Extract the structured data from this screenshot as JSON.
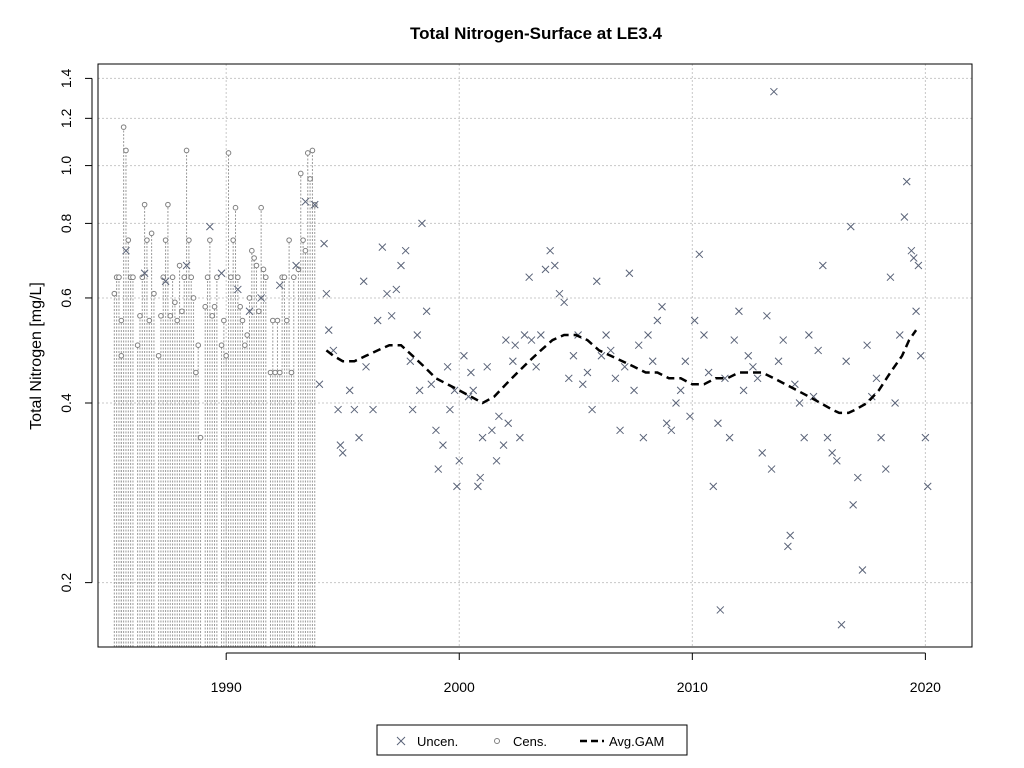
{
  "chart_data": {
    "type": "scatter",
    "title": "Total Nitrogen-Surface at LE3.4",
    "xlabel": "",
    "ylabel": "Total Nitrogen [mg/L]",
    "y_scale": "log",
    "xlim": [
      1984.5,
      2022
    ],
    "ylim": [
      0.156,
      1.48
    ],
    "x_ticks": [
      1990,
      2000,
      2010,
      2020
    ],
    "y_ticks": [
      0.2,
      0.4,
      0.6,
      0.8,
      1.0,
      1.2,
      1.4
    ],
    "y_tick_labels": [
      "0.2",
      "0.4",
      "0.6",
      "0.8",
      "1.0",
      "1.2",
      "1.4"
    ],
    "grid": true,
    "legend_position": "bottom",
    "colors": {
      "uncensored": "#5a6378",
      "censored": "#7f7f7f",
      "gam": "#000000",
      "grid": "#c8c8c8"
    },
    "legend": [
      {
        "label": "Uncen.",
        "marker": "x"
      },
      {
        "label": "Cens.",
        "marker": "circle"
      },
      {
        "label": "Avg.GAM",
        "marker": "dashed-line"
      }
    ],
    "series": [
      {
        "name": "Uncen.",
        "points": [
          [
            1985.7,
            0.72
          ],
          [
            1986.5,
            0.66
          ],
          [
            1987.4,
            0.64
          ],
          [
            1988.3,
            0.68
          ],
          [
            1989.3,
            0.79
          ],
          [
            1989.8,
            0.66
          ],
          [
            1990.5,
            0.62
          ],
          [
            1991.0,
            0.57
          ],
          [
            1991.5,
            0.6
          ],
          [
            1992.3,
            0.63
          ],
          [
            1993.0,
            0.68
          ],
          [
            1993.4,
            0.87
          ],
          [
            1993.8,
            0.86
          ],
          [
            1994.0,
            0.43
          ],
          [
            1994.2,
            0.74
          ],
          [
            1994.3,
            0.61
          ],
          [
            1994.4,
            0.53
          ],
          [
            1994.6,
            0.49
          ],
          [
            1994.8,
            0.39
          ],
          [
            1994.9,
            0.34
          ],
          [
            1995.0,
            0.33
          ],
          [
            1995.3,
            0.42
          ],
          [
            1995.5,
            0.39
          ],
          [
            1995.7,
            0.35
          ],
          [
            1995.9,
            0.64
          ],
          [
            1996.0,
            0.46
          ],
          [
            1996.3,
            0.39
          ],
          [
            1996.5,
            0.55
          ],
          [
            1996.7,
            0.73
          ],
          [
            1996.9,
            0.61
          ],
          [
            1997.1,
            0.56
          ],
          [
            1997.3,
            0.62
          ],
          [
            1997.5,
            0.68
          ],
          [
            1997.7,
            0.72
          ],
          [
            1997.9,
            0.47
          ],
          [
            1998.0,
            0.39
          ],
          [
            1998.2,
            0.52
          ],
          [
            1998.3,
            0.42
          ],
          [
            1998.4,
            0.8
          ],
          [
            1998.6,
            0.57
          ],
          [
            1998.8,
            0.43
          ],
          [
            1999.0,
            0.36
          ],
          [
            1999.1,
            0.31
          ],
          [
            1999.3,
            0.34
          ],
          [
            1999.5,
            0.46
          ],
          [
            1999.6,
            0.39
          ],
          [
            1999.8,
            0.42
          ],
          [
            1999.9,
            0.29
          ],
          [
            2000.0,
            0.32
          ],
          [
            2000.2,
            0.48
          ],
          [
            2000.4,
            0.41
          ],
          [
            2000.5,
            0.45
          ],
          [
            2000.6,
            0.42
          ],
          [
            2000.8,
            0.29
          ],
          [
            2000.9,
            0.3
          ],
          [
            2001.0,
            0.35
          ],
          [
            2001.2,
            0.46
          ],
          [
            2001.4,
            0.36
          ],
          [
            2001.6,
            0.32
          ],
          [
            2001.7,
            0.38
          ],
          [
            2001.9,
            0.34
          ],
          [
            2002.0,
            0.51
          ],
          [
            2002.1,
            0.37
          ],
          [
            2002.3,
            0.47
          ],
          [
            2002.4,
            0.5
          ],
          [
            2002.6,
            0.35
          ],
          [
            2002.8,
            0.52
          ],
          [
            2003.0,
            0.65
          ],
          [
            2003.1,
            0.51
          ],
          [
            2003.3,
            0.46
          ],
          [
            2003.5,
            0.52
          ],
          [
            2003.7,
            0.67
          ],
          [
            2003.9,
            0.72
          ],
          [
            2004.1,
            0.68
          ],
          [
            2004.3,
            0.61
          ],
          [
            2004.5,
            0.59
          ],
          [
            2004.7,
            0.44
          ],
          [
            2004.9,
            0.48
          ],
          [
            2005.1,
            0.52
          ],
          [
            2005.3,
            0.43
          ],
          [
            2005.5,
            0.45
          ],
          [
            2005.7,
            0.39
          ],
          [
            2005.9,
            0.64
          ],
          [
            2006.1,
            0.48
          ],
          [
            2006.3,
            0.52
          ],
          [
            2006.5,
            0.49
          ],
          [
            2006.7,
            0.44
          ],
          [
            2006.9,
            0.36
          ],
          [
            2007.1,
            0.46
          ],
          [
            2007.3,
            0.66
          ],
          [
            2007.5,
            0.42
          ],
          [
            2007.7,
            0.5
          ],
          [
            2007.9,
            0.35
          ],
          [
            2008.1,
            0.52
          ],
          [
            2008.3,
            0.47
          ],
          [
            2008.5,
            0.55
          ],
          [
            2008.7,
            0.58
          ],
          [
            2008.9,
            0.37
          ],
          [
            2009.1,
            0.36
          ],
          [
            2009.3,
            0.4
          ],
          [
            2009.5,
            0.42
          ],
          [
            2009.7,
            0.47
          ],
          [
            2009.9,
            0.38
          ],
          [
            2010.1,
            0.55
          ],
          [
            2010.3,
            0.71
          ],
          [
            2010.5,
            0.52
          ],
          [
            2010.7,
            0.45
          ],
          [
            2010.9,
            0.29
          ],
          [
            2011.1,
            0.37
          ],
          [
            2011.2,
            0.18
          ],
          [
            2011.4,
            0.44
          ],
          [
            2011.6,
            0.35
          ],
          [
            2011.8,
            0.51
          ],
          [
            2012.0,
            0.57
          ],
          [
            2012.2,
            0.42
          ],
          [
            2012.4,
            0.48
          ],
          [
            2012.6,
            0.46
          ],
          [
            2012.8,
            0.44
          ],
          [
            2013.0,
            0.33
          ],
          [
            2013.2,
            0.56
          ],
          [
            2013.4,
            0.31
          ],
          [
            2013.5,
            1.33
          ],
          [
            2013.7,
            0.47
          ],
          [
            2013.9,
            0.51
          ],
          [
            2014.1,
            0.23
          ],
          [
            2014.2,
            0.24
          ],
          [
            2014.4,
            0.43
          ],
          [
            2014.6,
            0.4
          ],
          [
            2014.8,
            0.35
          ],
          [
            2015.0,
            0.52
          ],
          [
            2015.2,
            0.41
          ],
          [
            2015.4,
            0.49
          ],
          [
            2015.6,
            0.68
          ],
          [
            2015.8,
            0.35
          ],
          [
            2016.0,
            0.33
          ],
          [
            2016.2,
            0.32
          ],
          [
            2016.4,
            0.17
          ],
          [
            2016.6,
            0.47
          ],
          [
            2016.8,
            0.79
          ],
          [
            2016.9,
            0.27
          ],
          [
            2017.1,
            0.3
          ],
          [
            2017.3,
            0.21
          ],
          [
            2017.5,
            0.5
          ],
          [
            2017.7,
            0.41
          ],
          [
            2017.9,
            0.44
          ],
          [
            2018.1,
            0.35
          ],
          [
            2018.3,
            0.31
          ],
          [
            2018.5,
            0.65
          ],
          [
            2018.7,
            0.4
          ],
          [
            2018.9,
            0.52
          ],
          [
            2019.1,
            0.82
          ],
          [
            2019.2,
            0.94
          ],
          [
            2019.4,
            0.72
          ],
          [
            2019.5,
            0.7
          ],
          [
            2019.6,
            0.57
          ],
          [
            2019.7,
            0.68
          ],
          [
            2019.8,
            0.48
          ],
          [
            2020.0,
            0.35
          ],
          [
            2020.1,
            0.29
          ]
        ]
      },
      {
        "name": "Cens.",
        "points": [
          [
            1985.2,
            0.61
          ],
          [
            1985.3,
            0.65
          ],
          [
            1985.4,
            0.65
          ],
          [
            1985.5,
            0.48
          ],
          [
            1985.5,
            0.55
          ],
          [
            1985.6,
            1.16
          ],
          [
            1985.7,
            1.06
          ],
          [
            1985.8,
            0.75
          ],
          [
            1985.9,
            0.65
          ],
          [
            1986.0,
            0.65
          ],
          [
            1986.2,
            0.5
          ],
          [
            1986.3,
            0.56
          ],
          [
            1986.4,
            0.65
          ],
          [
            1986.5,
            0.86
          ],
          [
            1986.6,
            0.75
          ],
          [
            1986.7,
            0.55
          ],
          [
            1986.8,
            0.77
          ],
          [
            1986.9,
            0.61
          ],
          [
            1987.1,
            0.48
          ],
          [
            1987.2,
            0.56
          ],
          [
            1987.3,
            0.65
          ],
          [
            1987.4,
            0.75
          ],
          [
            1987.5,
            0.86
          ],
          [
            1987.6,
            0.56
          ],
          [
            1987.7,
            0.65
          ],
          [
            1987.8,
            0.59
          ],
          [
            1987.9,
            0.55
          ],
          [
            1988.0,
            0.68
          ],
          [
            1988.1,
            0.57
          ],
          [
            1988.2,
            0.65
          ],
          [
            1988.3,
            1.06
          ],
          [
            1988.4,
            0.75
          ],
          [
            1988.5,
            0.65
          ],
          [
            1988.6,
            0.6
          ],
          [
            1988.7,
            0.45
          ],
          [
            1988.8,
            0.5
          ],
          [
            1988.9,
            0.35
          ],
          [
            1989.1,
            0.58
          ],
          [
            1989.2,
            0.65
          ],
          [
            1989.3,
            0.75
          ],
          [
            1989.4,
            0.56
          ],
          [
            1989.5,
            0.58
          ],
          [
            1989.6,
            0.65
          ],
          [
            1989.8,
            0.5
          ],
          [
            1989.9,
            0.55
          ],
          [
            1990.0,
            0.48
          ],
          [
            1990.1,
            1.05
          ],
          [
            1990.2,
            0.65
          ],
          [
            1990.3,
            0.75
          ],
          [
            1990.4,
            0.85
          ],
          [
            1990.5,
            0.65
          ],
          [
            1990.6,
            0.58
          ],
          [
            1990.7,
            0.55
          ],
          [
            1990.8,
            0.5
          ],
          [
            1990.9,
            0.52
          ],
          [
            1991.0,
            0.6
          ],
          [
            1991.1,
            0.72
          ],
          [
            1991.2,
            0.7
          ],
          [
            1991.3,
            0.68
          ],
          [
            1991.4,
            0.57
          ],
          [
            1991.5,
            0.85
          ],
          [
            1991.6,
            0.67
          ],
          [
            1991.7,
            0.65
          ],
          [
            1991.9,
            0.45
          ],
          [
            1992.0,
            0.55
          ],
          [
            1992.1,
            0.45
          ],
          [
            1992.2,
            0.55
          ],
          [
            1992.3,
            0.45
          ],
          [
            1992.4,
            0.65
          ],
          [
            1992.5,
            0.65
          ],
          [
            1992.6,
            0.55
          ],
          [
            1992.7,
            0.75
          ],
          [
            1992.8,
            0.45
          ],
          [
            1992.9,
            0.65
          ],
          [
            1993.1,
            0.67
          ],
          [
            1993.2,
            0.97
          ],
          [
            1993.3,
            0.75
          ],
          [
            1993.4,
            0.72
          ],
          [
            1993.5,
            1.05
          ],
          [
            1993.6,
            0.95
          ],
          [
            1993.7,
            1.06
          ],
          [
            1993.8,
            0.86
          ]
        ]
      },
      {
        "name": "Avg.GAM",
        "points": [
          [
            1994.3,
            0.49
          ],
          [
            1994.6,
            0.48
          ],
          [
            1995.0,
            0.47
          ],
          [
            1995.5,
            0.47
          ],
          [
            1996.0,
            0.48
          ],
          [
            1996.5,
            0.49
          ],
          [
            1997.0,
            0.5
          ],
          [
            1997.5,
            0.5
          ],
          [
            1998.0,
            0.48
          ],
          [
            1998.5,
            0.46
          ],
          [
            1999.0,
            0.44
          ],
          [
            1999.5,
            0.43
          ],
          [
            2000.0,
            0.42
          ],
          [
            2000.5,
            0.41
          ],
          [
            2001.0,
            0.4
          ],
          [
            2001.5,
            0.41
          ],
          [
            2002.0,
            0.43
          ],
          [
            2002.5,
            0.45
          ],
          [
            2003.0,
            0.47
          ],
          [
            2003.5,
            0.49
          ],
          [
            2004.0,
            0.51
          ],
          [
            2004.5,
            0.52
          ],
          [
            2005.0,
            0.52
          ],
          [
            2005.5,
            0.51
          ],
          [
            2006.0,
            0.49
          ],
          [
            2006.5,
            0.48
          ],
          [
            2007.0,
            0.47
          ],
          [
            2007.5,
            0.46
          ],
          [
            2008.0,
            0.45
          ],
          [
            2008.5,
            0.45
          ],
          [
            2009.0,
            0.44
          ],
          [
            2009.5,
            0.44
          ],
          [
            2010.0,
            0.43
          ],
          [
            2010.5,
            0.43
          ],
          [
            2011.0,
            0.44
          ],
          [
            2011.5,
            0.44
          ],
          [
            2012.0,
            0.45
          ],
          [
            2012.5,
            0.45
          ],
          [
            2013.0,
            0.45
          ],
          [
            2013.5,
            0.44
          ],
          [
            2014.0,
            0.43
          ],
          [
            2014.5,
            0.42
          ],
          [
            2015.0,
            0.41
          ],
          [
            2015.5,
            0.4
          ],
          [
            2016.0,
            0.39
          ],
          [
            2016.3,
            0.385
          ],
          [
            2016.7,
            0.385
          ],
          [
            2017.0,
            0.39
          ],
          [
            2017.5,
            0.4
          ],
          [
            2018.0,
            0.42
          ],
          [
            2018.5,
            0.45
          ],
          [
            2019.0,
            0.48
          ],
          [
            2019.3,
            0.51
          ],
          [
            2019.6,
            0.53
          ]
        ]
      }
    ]
  }
}
